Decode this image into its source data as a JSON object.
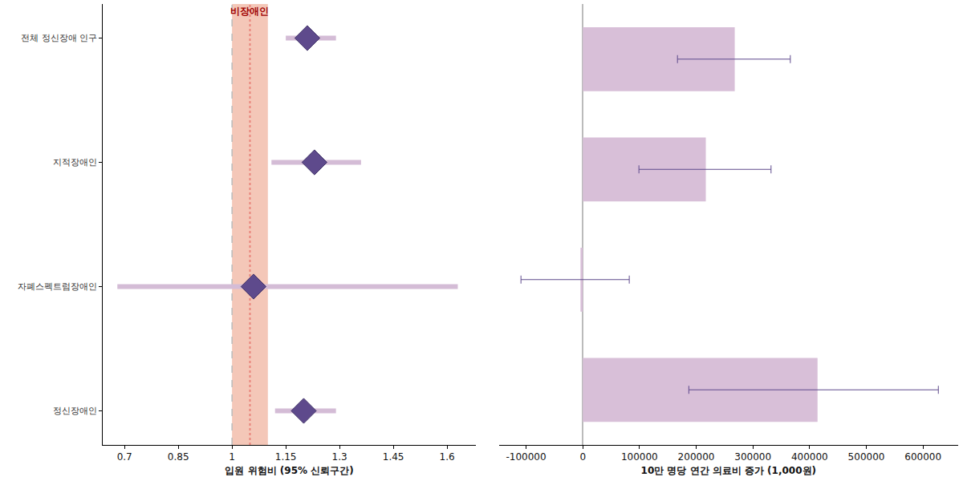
{
  "chart_data": [
    {
      "type": "scatter",
      "marker": "diamond",
      "color": "#5e4a8c",
      "xlabel": "입원 위험비 (95% 신뢰구간)",
      "categories": [
        "전체 정신장애 인구",
        "지적장애인",
        "자폐스펙트럼장애인",
        "정신장애인"
      ],
      "values": [
        1.21,
        1.23,
        1.06,
        1.2
      ],
      "lower": [
        1.15,
        1.11,
        0.68,
        1.12
      ],
      "upper": [
        1.29,
        1.36,
        1.63,
        1.29
      ],
      "reference": {
        "label": "비장애인",
        "value": 1.05,
        "lower": 1,
        "upper": 1.1
      },
      "null_value": 1,
      "xlim": [
        0.64,
        1.68
      ],
      "xticks": [
        0.7,
        0.85,
        1,
        1.15,
        1.3,
        1.45,
        1.6
      ],
      "grid": false
    },
    {
      "type": "bar",
      "orientation": "horizontal",
      "color": "#d8bfd8",
      "xlabel": "10만 명당 연간 의료비 증가 (1,000원)",
      "categories": [
        "전체 정신장애 인구",
        "지적장애인",
        "자폐스펙트럼장애인",
        "정신장애인"
      ],
      "values": [
        268000,
        217000,
        -4000,
        414000
      ],
      "lower": [
        167000,
        99000,
        -109000,
        187000
      ],
      "upper": [
        366000,
        332000,
        82000,
        627000
      ],
      "xlim": [
        -148000,
        662000
      ],
      "xticks": [
        -100000,
        0,
        100000,
        200000,
        300000,
        400000,
        500000,
        600000
      ],
      "grid": false,
      "tick_labels": "x"
    }
  ]
}
